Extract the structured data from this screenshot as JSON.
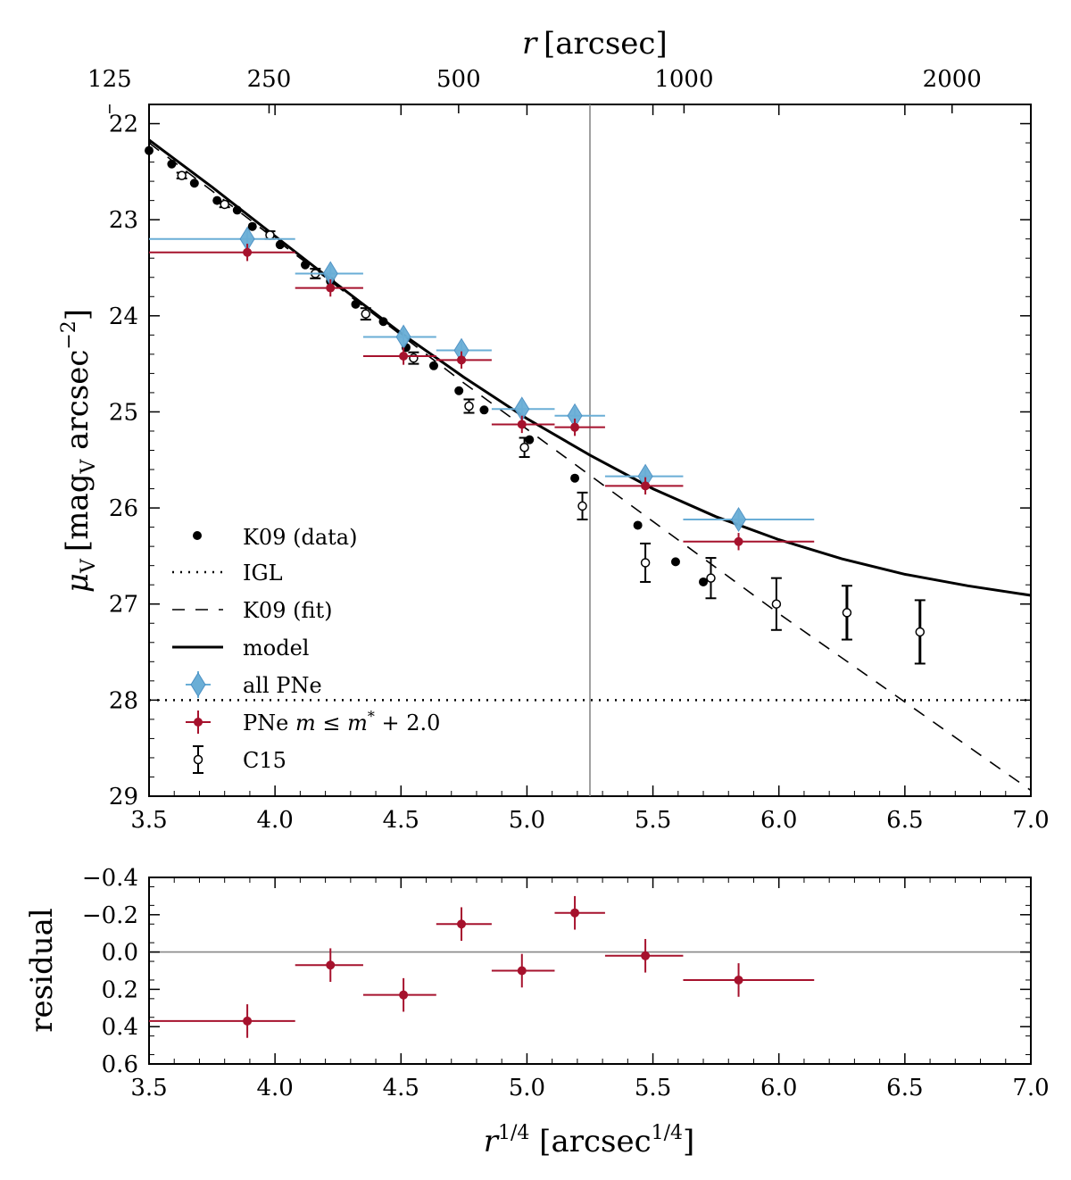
{
  "chart_data": [
    {
      "id": "main",
      "type": "scatter",
      "xlabel": "r^{1/4} [arcsec^{1/4}]",
      "ylabel": "μV [magV arcsec−2]",
      "ylabel_parts": {
        "mu": "μ",
        "mu_sub": "V",
        "bracket_open": "[",
        "mag": "mag",
        "mag_sub": "V",
        "arcsec": " arcsec",
        "exp": "−2",
        "bracket_close": "]"
      },
      "top_axis": {
        "label_italic": "r",
        "label_rest": "[arcsec]",
        "ticks": [
          {
            "label": "125",
            "r": 125
          },
          {
            "label": "250",
            "r": 250
          },
          {
            "label": "500",
            "r": 500
          },
          {
            "label": "1000",
            "r": 1000
          },
          {
            "label": "2000",
            "r": 2000
          }
        ]
      },
      "xlim": [
        3.5,
        7.0
      ],
      "ylim": [
        29,
        21.8
      ],
      "xticks": [
        "3.5",
        "4.0",
        "4.5",
        "5.0",
        "5.5",
        "6.0",
        "6.5",
        "7.0"
      ],
      "yticks": [
        "22",
        "23",
        "24",
        "25",
        "26",
        "27",
        "28",
        "29"
      ],
      "vline_x": 5.25,
      "series": [
        {
          "name": "K09 (data)",
          "marker": "filled-circle",
          "color": "#000000",
          "points": [
            [
              3.5,
              22.28
            ],
            [
              3.59,
              22.42
            ],
            [
              3.68,
              22.62
            ],
            [
              3.77,
              22.8
            ],
            [
              3.85,
              22.9
            ],
            [
              3.91,
              23.07
            ],
            [
              4.02,
              23.26
            ],
            [
              4.12,
              23.47
            ],
            [
              4.22,
              23.64
            ],
            [
              4.32,
              23.88
            ],
            [
              4.43,
              24.06
            ],
            [
              4.52,
              24.33
            ],
            [
              4.63,
              24.52
            ],
            [
              4.73,
              24.78
            ],
            [
              4.83,
              24.98
            ],
            [
              5.01,
              25.29
            ],
            [
              5.19,
              25.69
            ],
            [
              5.44,
              26.18
            ],
            [
              5.59,
              26.56
            ],
            [
              5.7,
              26.77
            ]
          ]
        },
        {
          "name": "C15",
          "marker": "open-circle",
          "color": "#000000",
          "points": [
            {
              "x": 3.63,
              "y": 22.54,
              "err": 0.03
            },
            {
              "x": 3.8,
              "y": 22.84,
              "err": 0.03
            },
            {
              "x": 3.98,
              "y": 23.16,
              "err": 0.04
            },
            {
              "x": 4.16,
              "y": 23.56,
              "err": 0.05
            },
            {
              "x": 4.36,
              "y": 23.98,
              "err": 0.06
            },
            {
              "x": 4.55,
              "y": 24.44,
              "err": 0.06
            },
            {
              "x": 4.77,
              "y": 24.94,
              "err": 0.07
            },
            {
              "x": 4.99,
              "y": 25.37,
              "err": 0.1
            },
            {
              "x": 5.22,
              "y": 25.98,
              "err": 0.14
            },
            {
              "x": 5.47,
              "y": 26.57,
              "err": 0.2
            },
            {
              "x": 5.73,
              "y": 26.73,
              "err": 0.21
            },
            {
              "x": 5.99,
              "y": 27.0,
              "err": 0.27
            },
            {
              "x": 6.27,
              "y": 27.09,
              "err": 0.28
            },
            {
              "x": 6.56,
              "y": 27.29,
              "err": 0.33
            }
          ]
        },
        {
          "name": "all PNe",
          "marker": "diamond",
          "color": "#6aaed6",
          "points": [
            {
              "x": 3.89,
              "x0": 3.5,
              "x1": 4.08,
              "y": 23.2,
              "err": 0.09
            },
            {
              "x": 4.22,
              "x0": 4.08,
              "x1": 4.35,
              "y": 23.56,
              "err": 0.09
            },
            {
              "x": 4.51,
              "x0": 4.35,
              "x1": 4.64,
              "y": 24.22,
              "err": 0.09
            },
            {
              "x": 4.74,
              "x0": 4.64,
              "x1": 4.86,
              "y": 24.36,
              "err": 0.09
            },
            {
              "x": 4.98,
              "x0": 4.86,
              "x1": 5.11,
              "y": 24.97,
              "err": 0.09
            },
            {
              "x": 5.19,
              "x0": 5.11,
              "x1": 5.31,
              "y": 25.04,
              "err": 0.09
            },
            {
              "x": 5.47,
              "x0": 5.31,
              "x1": 5.62,
              "y": 25.67,
              "err": 0.09
            },
            {
              "x": 5.84,
              "x0": 5.62,
              "x1": 6.14,
              "y": 26.12,
              "err": 0.09
            }
          ]
        },
        {
          "name": "PNe m ≤ m* + 2.0",
          "legend_parts": {
            "prefix": "PNe ",
            "m": "m",
            "le": " ≤ ",
            "mstar": "m",
            "star": "*",
            "suffix": " + 2.0"
          },
          "marker": "filled-circle",
          "color": "#a6122d",
          "points": [
            {
              "x": 3.89,
              "x0": 3.5,
              "x1": 4.08,
              "y": 23.34,
              "err": 0.09
            },
            {
              "x": 4.22,
              "x0": 4.08,
              "x1": 4.35,
              "y": 23.71,
              "err": 0.09
            },
            {
              "x": 4.51,
              "x0": 4.35,
              "x1": 4.64,
              "y": 24.42,
              "err": 0.09
            },
            {
              "x": 4.74,
              "x0": 4.64,
              "x1": 4.86,
              "y": 24.46,
              "err": 0.09
            },
            {
              "x": 4.98,
              "x0": 4.86,
              "x1": 5.11,
              "y": 25.13,
              "err": 0.09
            },
            {
              "x": 5.19,
              "x0": 5.11,
              "x1": 5.31,
              "y": 25.16,
              "err": 0.09
            },
            {
              "x": 5.47,
              "x0": 5.31,
              "x1": 5.62,
              "y": 25.77,
              "err": 0.09
            },
            {
              "x": 5.84,
              "x0": 5.62,
              "x1": 6.14,
              "y": 26.35,
              "err": 0.09
            }
          ]
        },
        {
          "name": "model",
          "line": "solid",
          "color": "#000000",
          "points": [
            [
              3.5,
              22.17
            ],
            [
              3.75,
              22.66
            ],
            [
              4.0,
              23.17
            ],
            [
              4.25,
              23.68
            ],
            [
              4.5,
              24.18
            ],
            [
              4.75,
              24.64
            ],
            [
              5.0,
              25.07
            ],
            [
              5.25,
              25.45
            ],
            [
              5.5,
              25.8
            ],
            [
              5.75,
              26.09
            ],
            [
              6.0,
              26.33
            ],
            [
              6.25,
              26.53
            ],
            [
              6.5,
              26.69
            ],
            [
              6.75,
              26.81
            ],
            [
              7.0,
              26.91
            ]
          ]
        },
        {
          "name": "K09 (fit)",
          "line": "dashed",
          "color": "#000000",
          "points": [
            [
              3.5,
              22.2
            ],
            [
              3.75,
              22.7
            ],
            [
              4.0,
              23.2
            ],
            [
              4.25,
              23.7
            ],
            [
              4.5,
              24.2
            ],
            [
              4.75,
              24.7
            ],
            [
              5.0,
              25.18
            ],
            [
              5.25,
              25.66
            ],
            [
              5.5,
              26.14
            ],
            [
              5.75,
              26.62
            ],
            [
              6.0,
              27.1
            ],
            [
              6.25,
              27.56
            ],
            [
              6.5,
              28.02
            ],
            [
              6.75,
              28.48
            ],
            [
              7.0,
              28.94
            ]
          ]
        },
        {
          "name": "IGL",
          "line": "dotted",
          "color": "#000000",
          "y": 28.0
        }
      ],
      "legend_position": "lower-left",
      "legend_order": [
        "K09 (data)",
        "IGL",
        "K09 (fit)",
        "model",
        "all PNe",
        "PNe m ≤ m* + 2.0",
        "C15"
      ]
    },
    {
      "id": "residual",
      "type": "scatter",
      "xlabel": "r^{1/4} [arcsec^{1/4}]",
      "xlabel_parts": {
        "r": "r",
        "rexp": "1/4",
        "bracket_open": " [arcsec",
        "exp": "1/4",
        "bracket_close": "]"
      },
      "ylabel": "residual",
      "xlim": [
        3.5,
        7.0
      ],
      "ylim": [
        0.6,
        -0.4
      ],
      "xticks": [
        "3.5",
        "4.0",
        "4.5",
        "5.0",
        "5.5",
        "6.0",
        "6.5",
        "7.0"
      ],
      "yticks": [
        "−0.4",
        "−0.2",
        "0.0",
        "0.2",
        "0.4",
        "0.6"
      ],
      "ytick_values": [
        -0.4,
        -0.2,
        0.0,
        0.2,
        0.4,
        0.6
      ],
      "hline_y": 0.0,
      "series": [
        {
          "name": "residual",
          "color": "#a6122d",
          "points": [
            {
              "x": 3.89,
              "x0": 3.5,
              "x1": 4.08,
              "y": 0.37,
              "err": 0.09
            },
            {
              "x": 4.22,
              "x0": 4.08,
              "x1": 4.35,
              "y": 0.07,
              "err": 0.09
            },
            {
              "x": 4.51,
              "x0": 4.35,
              "x1": 4.64,
              "y": 0.23,
              "err": 0.09
            },
            {
              "x": 4.74,
              "x0": 4.64,
              "x1": 4.86,
              "y": -0.15,
              "err": 0.09
            },
            {
              "x": 4.98,
              "x0": 4.86,
              "x1": 5.11,
              "y": 0.1,
              "err": 0.09
            },
            {
              "x": 5.19,
              "x0": 5.11,
              "x1": 5.31,
              "y": -0.21,
              "err": 0.09
            },
            {
              "x": 5.47,
              "x0": 5.31,
              "x1": 5.62,
              "y": 0.02,
              "err": 0.09
            },
            {
              "x": 5.84,
              "x0": 5.62,
              "x1": 6.14,
              "y": 0.15,
              "err": 0.09
            }
          ]
        }
      ]
    }
  ]
}
